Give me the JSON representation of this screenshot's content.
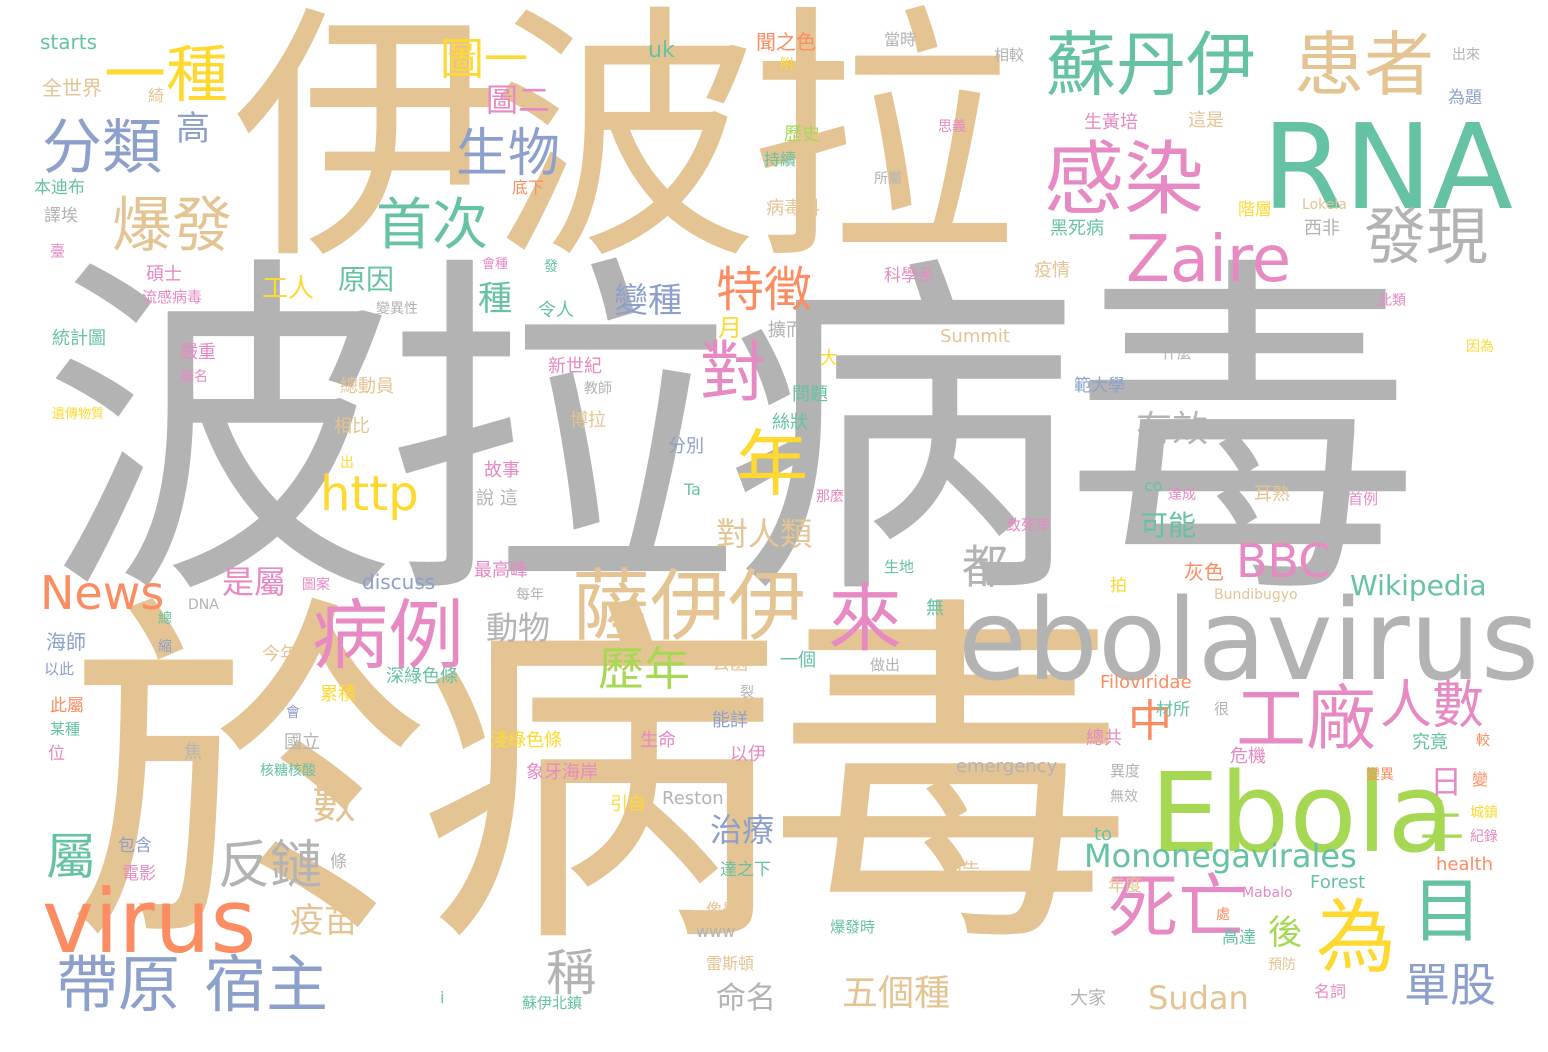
{
  "palette": {
    "tan": "#e5c494",
    "gray": "#b3b3b3",
    "green": "#66c2a5",
    "orange": "#fc8d62",
    "blue": "#8da0cb",
    "pink": "#e78ac3",
    "lime": "#a6d854",
    "yellow": "#ffd92f"
  },
  "words": {
    "w01": "波拉病毒",
    "w02": "伊波拉",
    "w03": "於病毒",
    "w04": "ebolavirus",
    "w05": "RNA",
    "w06": "Ebola",
    "w07": "virus",
    "w08": "蘇丹伊",
    "w09": "患者",
    "w10": "感染",
    "w11": "Zaire",
    "w12": "發現",
    "w13": "薩伊伊",
    "w14": "病例",
    "w15": "來",
    "w16": "工廠",
    "w17": "死亡",
    "w18": "為",
    "w19": "目",
    "w20": "帶原",
    "w21": "宿主",
    "w22": "一種",
    "w23": "分類",
    "w24": "爆發",
    "w25": "生物",
    "w26": "首次",
    "w27": "年",
    "w28": "http",
    "w29": "對",
    "w30": "特徵",
    "w31": "BBC",
    "w32": "人數",
    "w33": "News",
    "w34": "反鏈",
    "w35": "Mononegavirales",
    "w36": "單股",
    "w37": "五個種",
    "w38": "Sudan",
    "w39": "Wikipedia",
    "w40": "圖一",
    "w41": "圖二",
    "w42": "高",
    "w43": "歷年",
    "w44": "數",
    "w45": "屬",
    "w46": "都",
    "w47": "稱",
    "w48": "中",
    "w49": "上",
    "w50": "日",
    "w51": "後",
    "w52": "有效",
    "w53": "可能",
    "w54": "命名",
    "w55": "治療",
    "w56": "對人類",
    "w57": "疫苗",
    "w58": "動物",
    "w59": "是屬",
    "w60": "變種",
    "w61": "原因",
    "w62": "種",
    "w63": "工人",
    "w64": "月",
    "w65": "starts",
    "w66": "全世界",
    "w67": "uk",
    "w68": "聞之色",
    "w69": "當時",
    "w70": "相較",
    "w71": "出來",
    "w72": "為題",
    "w73": "歷史",
    "w74": "生黃培",
    "w75": "這是",
    "w76": "本迪布",
    "w77": "譯埃",
    "w78": "病毒科",
    "w79": "黑死病",
    "w80": "西非",
    "w81": "階層",
    "w82": "Lokela",
    "w83": "疫情",
    "w84": "科學系",
    "w85": "碩士",
    "w86": "流感病毒",
    "w87": "令人",
    "w88": "統計圖",
    "w89": "嚴重",
    "w90": "新世紀",
    "w91": "Summit",
    "w92": "總動員",
    "w93": "問題",
    "w94": "範大學",
    "w95": "什麼",
    "w96": "相比",
    "w97": "博拉",
    "w98": "絲狀",
    "w99": "分別",
    "w100": "故事",
    "w101": "說 這",
    "w102": "Ta",
    "w103": "co",
    "w104": "耳熟",
    "w105": "首例",
    "w106": "那麼",
    "w107": "致死率",
    "w108": "最高峰",
    "w109": "discuss",
    "w110": "每年",
    "w111": "生地",
    "w112": "灰色",
    "w113": "拍",
    "w114": "無",
    "w115": "Bundibugyo",
    "w116": "DNA",
    "w117": "海師",
    "w118": "以此",
    "w119": "今年",
    "w120": "公函",
    "w121": "一個",
    "w122": "做出",
    "w123": "Filoviridae",
    "w124": "累積",
    "w125": "深綠色條",
    "w126": "此屬",
    "w127": "某種",
    "w128": "國立",
    "w129": "能詳",
    "w130": "材所",
    "w131": "很",
    "w132": "總共",
    "w133": "淺綠色條",
    "w134": "生命",
    "w135": "以伊",
    "w136": "危機",
    "w137": "究竟",
    "w138": "位",
    "w139": "核糖核酸",
    "w140": "焦",
    "w141": "emergency",
    "w142": "異度",
    "w143": "象牙海岸",
    "w144": "引自",
    "w145": "Reston",
    "w146": "無效",
    "w147": "變異",
    "w148": "包含",
    "w149": "電影",
    "w150": "條",
    "w151": "達之下",
    "w152": "報告",
    "w153": "to",
    "w154": "health",
    "w155": "年度",
    "w156": "Forest",
    "w157": "Mabalo",
    "w158": "高達",
    "w159": "爆發時",
    "w160": "www",
    "w161": "像是",
    "w162": "雷斯頓",
    "w163": "預防",
    "w164": "名詞",
    "w165": "大家",
    "w166": "蘇伊北鎮",
    "w167": "i",
    "w168": "因為",
    "w169": "紀錄",
    "w170": "城鎮",
    "w171": "擴而成",
    "w172": "大",
    "w173": "教師",
    "w174": "變異性",
    "w175": "遺傳物質",
    "w176": "嚴名",
    "w177": "持續",
    "w178": "所屬",
    "w179": "底下",
    "w180": "思義",
    "w181": "臺",
    "w182": "發",
    "w183": "會種",
    "w184": "此類",
    "w185": "總",
    "w186": "圖案",
    "w187": "達成",
    "w188": "裂",
    "w189": "會",
    "w190": "出",
    "w191": "較",
    "w192": "變",
    "w193": "處",
    "w194": "附",
    "w195": "縮",
    "w196": "綺"
  }
}
